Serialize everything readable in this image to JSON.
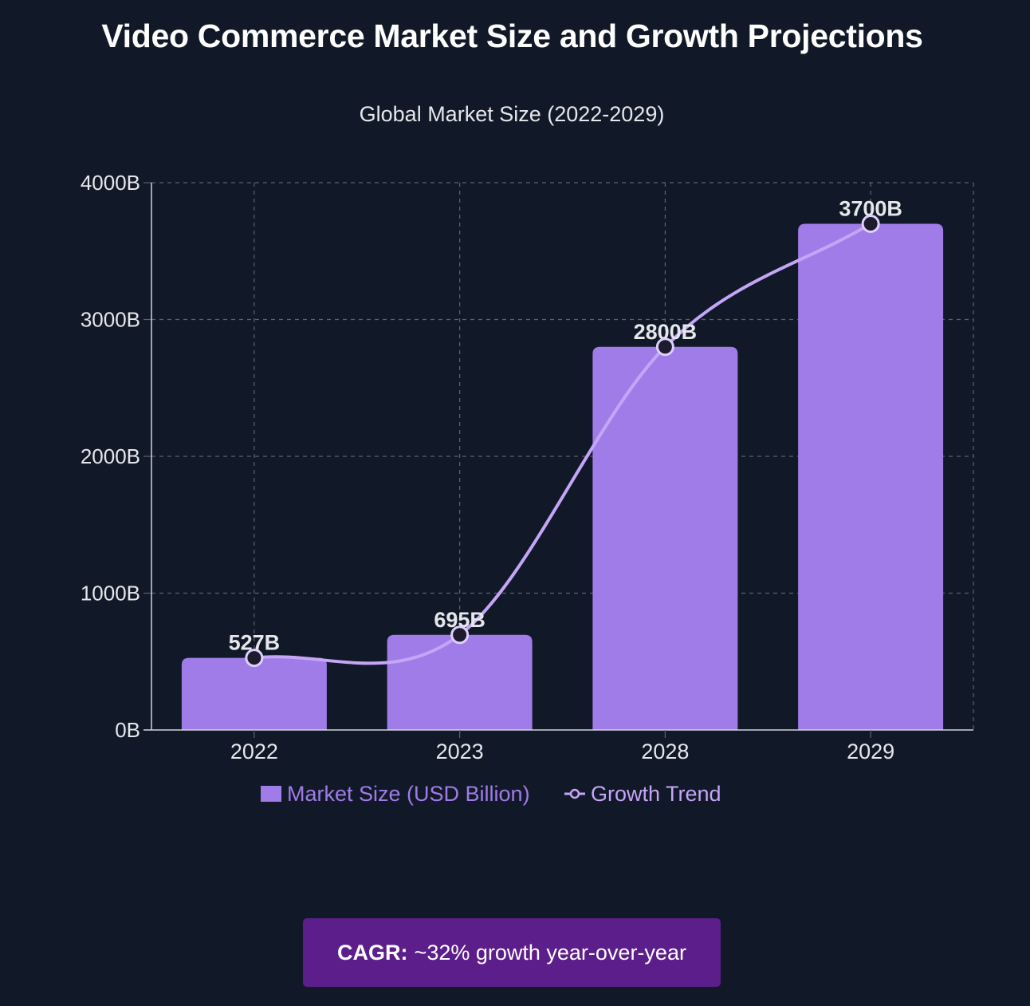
{
  "title": "Video Commerce Market Size and Growth Projections",
  "colors": {
    "background": "#111827",
    "bar": "#a07ce8",
    "line": "#c4a5f7",
    "grid": "#5c6270",
    "text": "#e5e7eb",
    "marker_fill": "#1e1b2e",
    "callout": "#5b1e8a"
  },
  "chart_data": {
    "type": "bar",
    "title": "Global Market Size (2022-2029)",
    "categories": [
      "2022",
      "2023",
      "2028",
      "2029"
    ],
    "series": [
      {
        "name": "Market Size (USD Billion)",
        "type": "bar",
        "values": [
          527,
          695,
          2800,
          3700
        ]
      },
      {
        "name": "Growth Trend",
        "type": "line",
        "values": [
          527,
          695,
          2800,
          3700
        ]
      }
    ],
    "data_labels": [
      "527B",
      "695B",
      "2800B",
      "3700B"
    ],
    "ylim": [
      0,
      4000
    ],
    "yticks": [
      0,
      1000,
      2000,
      3000,
      4000
    ],
    "ytick_labels": [
      "0B",
      "1000B",
      "2000B",
      "3000B",
      "4000B"
    ],
    "grid": true,
    "legend_position": "bottom"
  },
  "callout": {
    "label": "CAGR:",
    "text": "~32% growth year-over-year"
  }
}
